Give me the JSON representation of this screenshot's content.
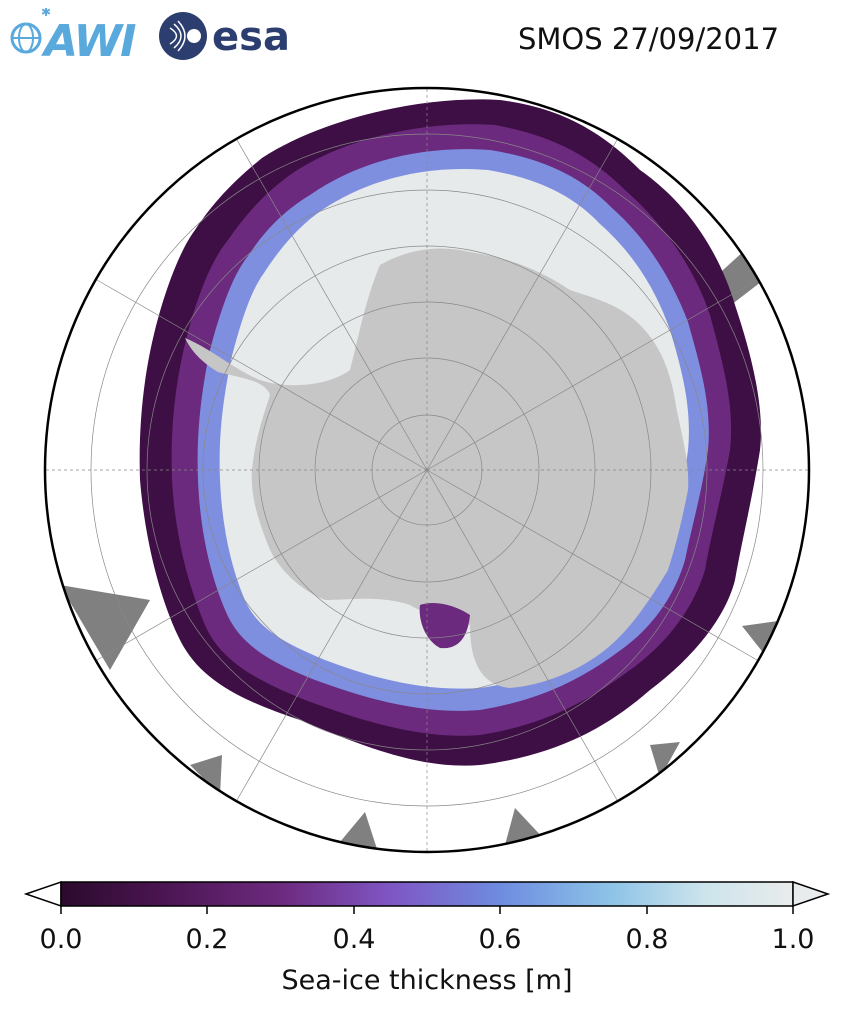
{
  "logos": {
    "awi": "AWI",
    "esa": "esa"
  },
  "title": "SMOS 27/09/2017",
  "map": {
    "projection": "south-polar-stereographic",
    "land_color": "#c6c6c6",
    "ocean_color": "#ffffff",
    "no_data_color": "#808080",
    "graticule_color": "#888888"
  },
  "colorbar": {
    "label": "Sea-ice thickness [m]",
    "range": [
      0.0,
      1.0
    ],
    "ticks": [
      "0.0",
      "0.2",
      "0.4",
      "0.6",
      "0.8",
      "1.0"
    ],
    "colormap": [
      "#2b0a2c",
      "#4b1552",
      "#6d2a7e",
      "#7f56c4",
      "#6e8ce0",
      "#8cc3e6",
      "#cde4ec",
      "#e9ecec"
    ]
  }
}
